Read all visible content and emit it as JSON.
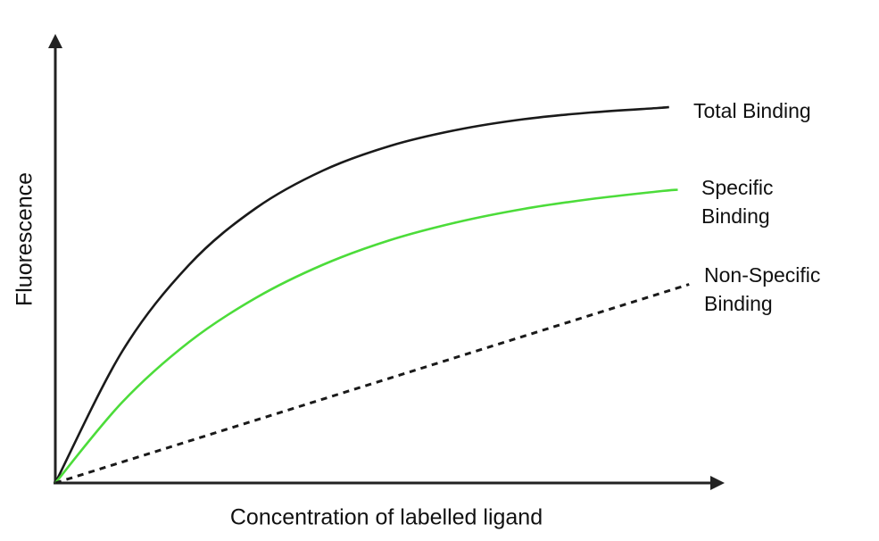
{
  "chart_data": {
    "type": "line",
    "title": "",
    "xlabel": "Concentration of labelled ligand",
    "ylabel": "Fluorescence",
    "xlim": [
      0,
      10
    ],
    "ylim": [
      0,
      10
    ],
    "grid": false,
    "ticks": false,
    "legend": "inline labels at line ends (right)",
    "axis_color": "#222222",
    "series": [
      {
        "name": "Total Binding",
        "label_lines": [
          "Total Binding"
        ],
        "color": "#1a1a1a",
        "dash": false,
        "x": [
          0,
          1,
          2,
          3,
          4,
          5,
          6,
          7,
          8,
          9,
          9.17
        ],
        "y": [
          0,
          2.95,
          4.89,
          6.16,
          7.0,
          7.55,
          7.91,
          8.15,
          8.3,
          8.4,
          8.42
        ]
      },
      {
        "name": "Specific Binding",
        "label_lines": [
          "Specific",
          "Binding"
        ],
        "color": "#4cdc3a",
        "dash": false,
        "x": [
          0,
          1,
          2,
          3,
          4,
          5,
          6,
          7,
          8,
          9,
          9.3
        ],
        "y": [
          0,
          1.81,
          3.16,
          4.15,
          4.89,
          5.44,
          5.84,
          6.14,
          6.36,
          6.53,
          6.57
        ]
      },
      {
        "name": "Non-Specific Binding",
        "label_lines": [
          "Non-Specific",
          "Binding"
        ],
        "color": "#1a1a1a",
        "dash": true,
        "x": [
          0,
          9.47
        ],
        "y": [
          0,
          4.45
        ]
      }
    ]
  }
}
